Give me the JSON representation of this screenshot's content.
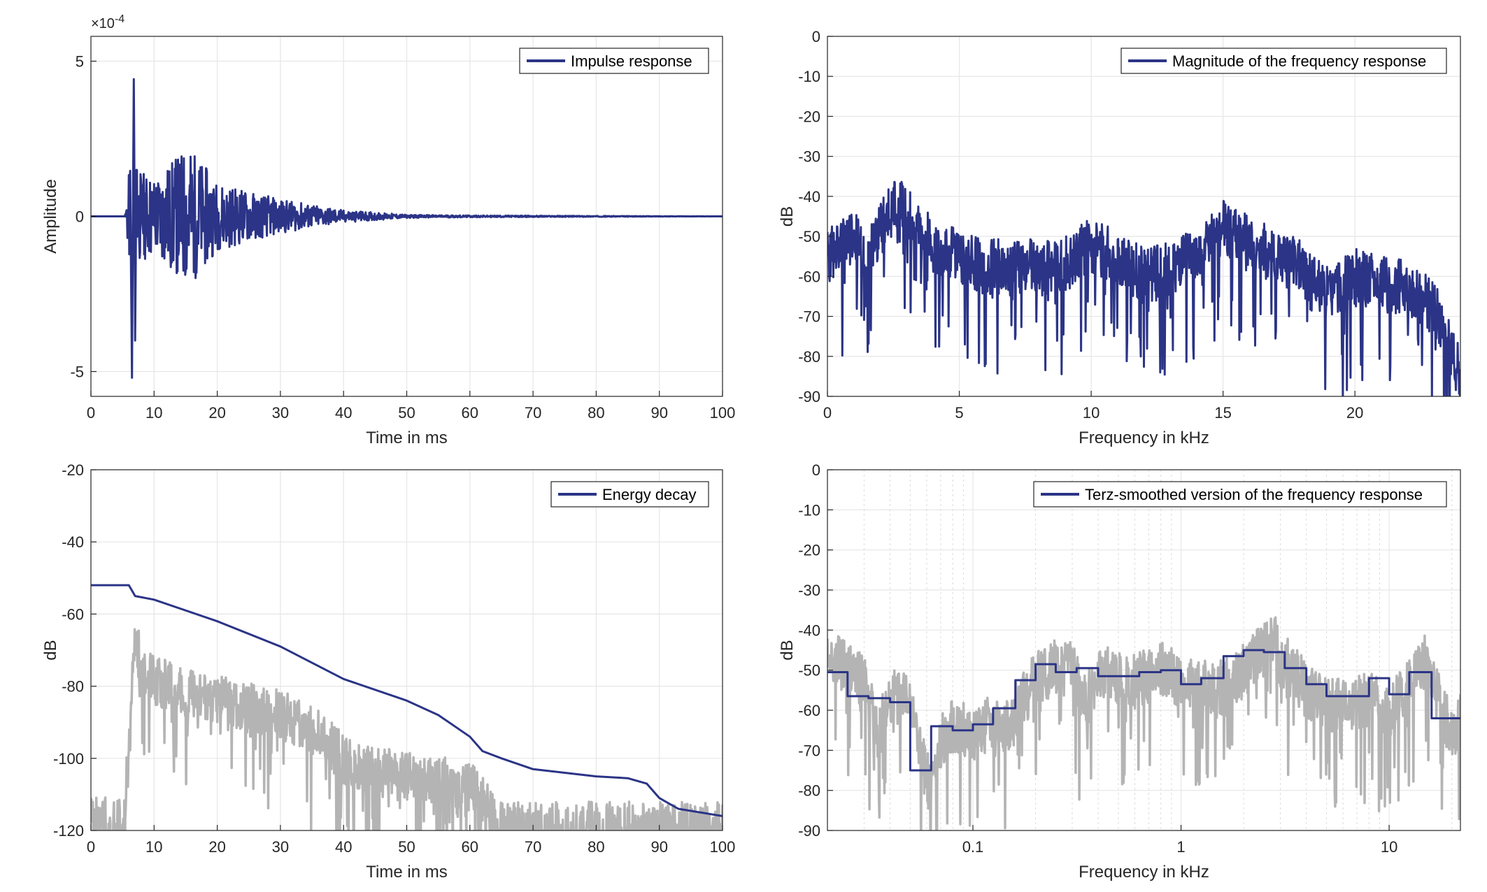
{
  "colors": {
    "series": "#2b3486",
    "reference": "#b4b4b4",
    "grid": "#e6e6e6",
    "axis": "#262626"
  },
  "chart_data": [
    {
      "type": "line",
      "xlabel": "Time in ms",
      "ylabel": "Amplitude",
      "y_exponent": "×10",
      "y_exponent_power": "-4",
      "xlim": [
        0,
        100
      ],
      "ylim": [
        -5.8,
        5.8
      ],
      "xticks": [
        0,
        10,
        20,
        30,
        40,
        50,
        60,
        70,
        80,
        90,
        100
      ],
      "xtick_labels": [
        "0",
        "10",
        "20",
        "30",
        "40",
        "50",
        "60",
        "70",
        "80",
        "90",
        "100"
      ],
      "yticks": [
        -5,
        0,
        5
      ],
      "ytick_labels": [
        "-5",
        "0",
        "5"
      ],
      "grid": true,
      "legend_position": "top-right",
      "series": [
        {
          "name": "Impulse response",
          "x": [
            0,
            5.4,
            6.2,
            6.5,
            6.8,
            7.0,
            7.2,
            10,
            15.5,
            20,
            30,
            40,
            50,
            60,
            100
          ],
          "y": [
            0,
            0,
            1.8,
            -5.2,
            4.9,
            -4.0,
            1.5,
            1.3,
            2.3,
            1.1,
            0.55,
            0.2,
            0.05,
            0.03,
            0
          ]
        }
      ]
    },
    {
      "type": "line",
      "xlabel": "Frequency in kHz",
      "ylabel": "dB",
      "xlim": [
        0,
        24
      ],
      "ylim": [
        -90,
        0
      ],
      "xticks": [
        0,
        5,
        10,
        15,
        20
      ],
      "xtick_labels": [
        "0",
        "5",
        "10",
        "15",
        "20"
      ],
      "yticks": [
        0,
        -10,
        -20,
        -30,
        -40,
        -50,
        -60,
        -70,
        -80,
        -90
      ],
      "ytick_labels": [
        "0",
        "-10",
        "-20",
        "-30",
        "-40",
        "-50",
        "-60",
        "-70",
        "-80",
        "-90"
      ],
      "grid": true,
      "legend_position": "top-right",
      "series": [
        {
          "name": "Magnitude of the frequency response",
          "x": [
            0,
            1,
            1.5,
            2,
            2.8,
            3,
            4,
            5,
            6,
            7,
            8,
            9,
            10,
            11,
            12,
            13,
            14,
            15,
            16,
            17,
            18,
            19,
            20,
            21,
            22,
            23,
            24
          ],
          "y": [
            -55,
            -50,
            -55,
            -48,
            -40,
            -45,
            -52,
            -55,
            -58,
            -57,
            -58,
            -57,
            -52,
            -55,
            -60,
            -58,
            -55,
            -48,
            -52,
            -55,
            -58,
            -65,
            -60,
            -62,
            -63,
            -68,
            -85
          ]
        }
      ]
    },
    {
      "type": "line",
      "xlabel": "Time in ms",
      "ylabel": "dB",
      "xlim": [
        0,
        100
      ],
      "ylim": [
        -120,
        -20
      ],
      "xticks": [
        0,
        10,
        20,
        30,
        40,
        50,
        60,
        70,
        80,
        90,
        100
      ],
      "xtick_labels": [
        "0",
        "10",
        "20",
        "30",
        "40",
        "50",
        "60",
        "70",
        "80",
        "90",
        "100"
      ],
      "yticks": [
        -20,
        -40,
        -60,
        -80,
        -100,
        -120
      ],
      "ytick_labels": [
        "-20",
        "-40",
        "-60",
        "-80",
        "-100",
        "-120"
      ],
      "grid": true,
      "legend_position": "top-right",
      "series": [
        {
          "name": "Energy decay",
          "x": [
            0,
            6,
            7,
            10,
            20,
            30,
            40,
            50,
            55,
            60,
            62,
            65,
            70,
            80,
            85,
            88,
            90,
            93,
            100
          ],
          "y": [
            -52,
            -52,
            -55,
            -56,
            -62,
            -69,
            -78,
            -84,
            -88,
            -94,
            -98,
            -100,
            -103,
            -105,
            -105.5,
            -107,
            -111,
            -114,
            -116
          ]
        },
        {
          "x": [
            0,
            5,
            6,
            6.5,
            7,
            8,
            10,
            15,
            20,
            25,
            30,
            35,
            40,
            45,
            50,
            55,
            60,
            62,
            64,
            65
          ],
          "y": [
            -117,
            -118,
            -100,
            -75,
            -66,
            -75,
            -78,
            -82,
            -83,
            -86,
            -88,
            -92,
            -100,
            -104,
            -105,
            -106,
            -108,
            -112,
            -117,
            -119
          ]
        }
      ]
    },
    {
      "type": "line",
      "xlabel": "Frequency in kHz",
      "ylabel": "dB",
      "x_scale": "log",
      "xlim": [
        0.02,
        22
      ],
      "ylim": [
        -90,
        0
      ],
      "xticks": [
        0.1,
        1,
        10
      ],
      "xtick_labels": [
        "0.1",
        "1",
        "10"
      ],
      "yticks": [
        0,
        -10,
        -20,
        -30,
        -40,
        -50,
        -60,
        -70,
        -80,
        -90
      ],
      "ytick_labels": [
        "0",
        "-10",
        "-20",
        "-30",
        "-40",
        "-50",
        "-60",
        "-70",
        "-80",
        "-90"
      ],
      "grid": true,
      "legend_position": "top-right",
      "series": [
        {
          "name": "Terz-smoothed version of the frequency response",
          "x": [
            0.02,
            0.025,
            0.025,
            0.0315,
            0.0315,
            0.04,
            0.04,
            0.05,
            0.05,
            0.063,
            0.063,
            0.08,
            0.08,
            0.1,
            0.1,
            0.125,
            0.125,
            0.16,
            0.16,
            0.2,
            0.2,
            0.25,
            0.25,
            0.315,
            0.315,
            0.4,
            0.4,
            0.5,
            0.5,
            0.63,
            0.63,
            0.8,
            0.8,
            1,
            1,
            1.25,
            1.25,
            1.6,
            1.6,
            2,
            2,
            2.5,
            2.5,
            3.15,
            3.15,
            4,
            4,
            5,
            5,
            6.3,
            6.3,
            8,
            8,
            10,
            10,
            12.5,
            12.5,
            16,
            16,
            20,
            20,
            22
          ],
          "y": [
            -50.5,
            -50.5,
            -56.5,
            -56.5,
            -57,
            -57,
            -58,
            -58,
            -75,
            -75,
            -64,
            -64,
            -65,
            -65,
            -63.5,
            -63.5,
            -59.5,
            -59.5,
            -52.5,
            -52.5,
            -48.5,
            -48.5,
            -50.5,
            -50.5,
            -49.5,
            -49.5,
            -51.5,
            -51.5,
            -51.5,
            -51.5,
            -50.5,
            -50.5,
            -50,
            -50,
            -53.5,
            -53.5,
            -52,
            -52,
            -46.5,
            -46.5,
            -45,
            -45,
            -45.5,
            -45.5,
            -49.5,
            -49.5,
            -53.5,
            -53.5,
            -56.5,
            -56.5,
            -56.5,
            -56.5,
            -52,
            -52,
            -56,
            -56,
            -50.5,
            -50.5,
            -62,
            -62,
            -62,
            -62
          ]
        },
        {
          "x": [
            0.02,
            0.03,
            0.035,
            0.04,
            0.05,
            0.055,
            0.063,
            0.07,
            0.08,
            0.1,
            0.12,
            0.14,
            0.16,
            0.2,
            0.25,
            0.3,
            0.35,
            0.4,
            0.5,
            0.6,
            0.8,
            1,
            1.5,
            2,
            2.5,
            2.8,
            3,
            4,
            5,
            6,
            8,
            10,
            12,
            15,
            18,
            20,
            22
          ],
          "y": [
            -47,
            -53,
            -66,
            -57,
            -56,
            -70,
            -80,
            -68,
            -64,
            -66,
            -63,
            -66,
            -60,
            -52,
            -49,
            -50,
            -59,
            -50,
            -52,
            -53,
            -50,
            -53,
            -55,
            -50,
            -45,
            -41,
            -47,
            -55,
            -58,
            -59,
            -57,
            -60,
            -54,
            -48,
            -60,
            -66,
            -62
          ]
        }
      ]
    }
  ]
}
